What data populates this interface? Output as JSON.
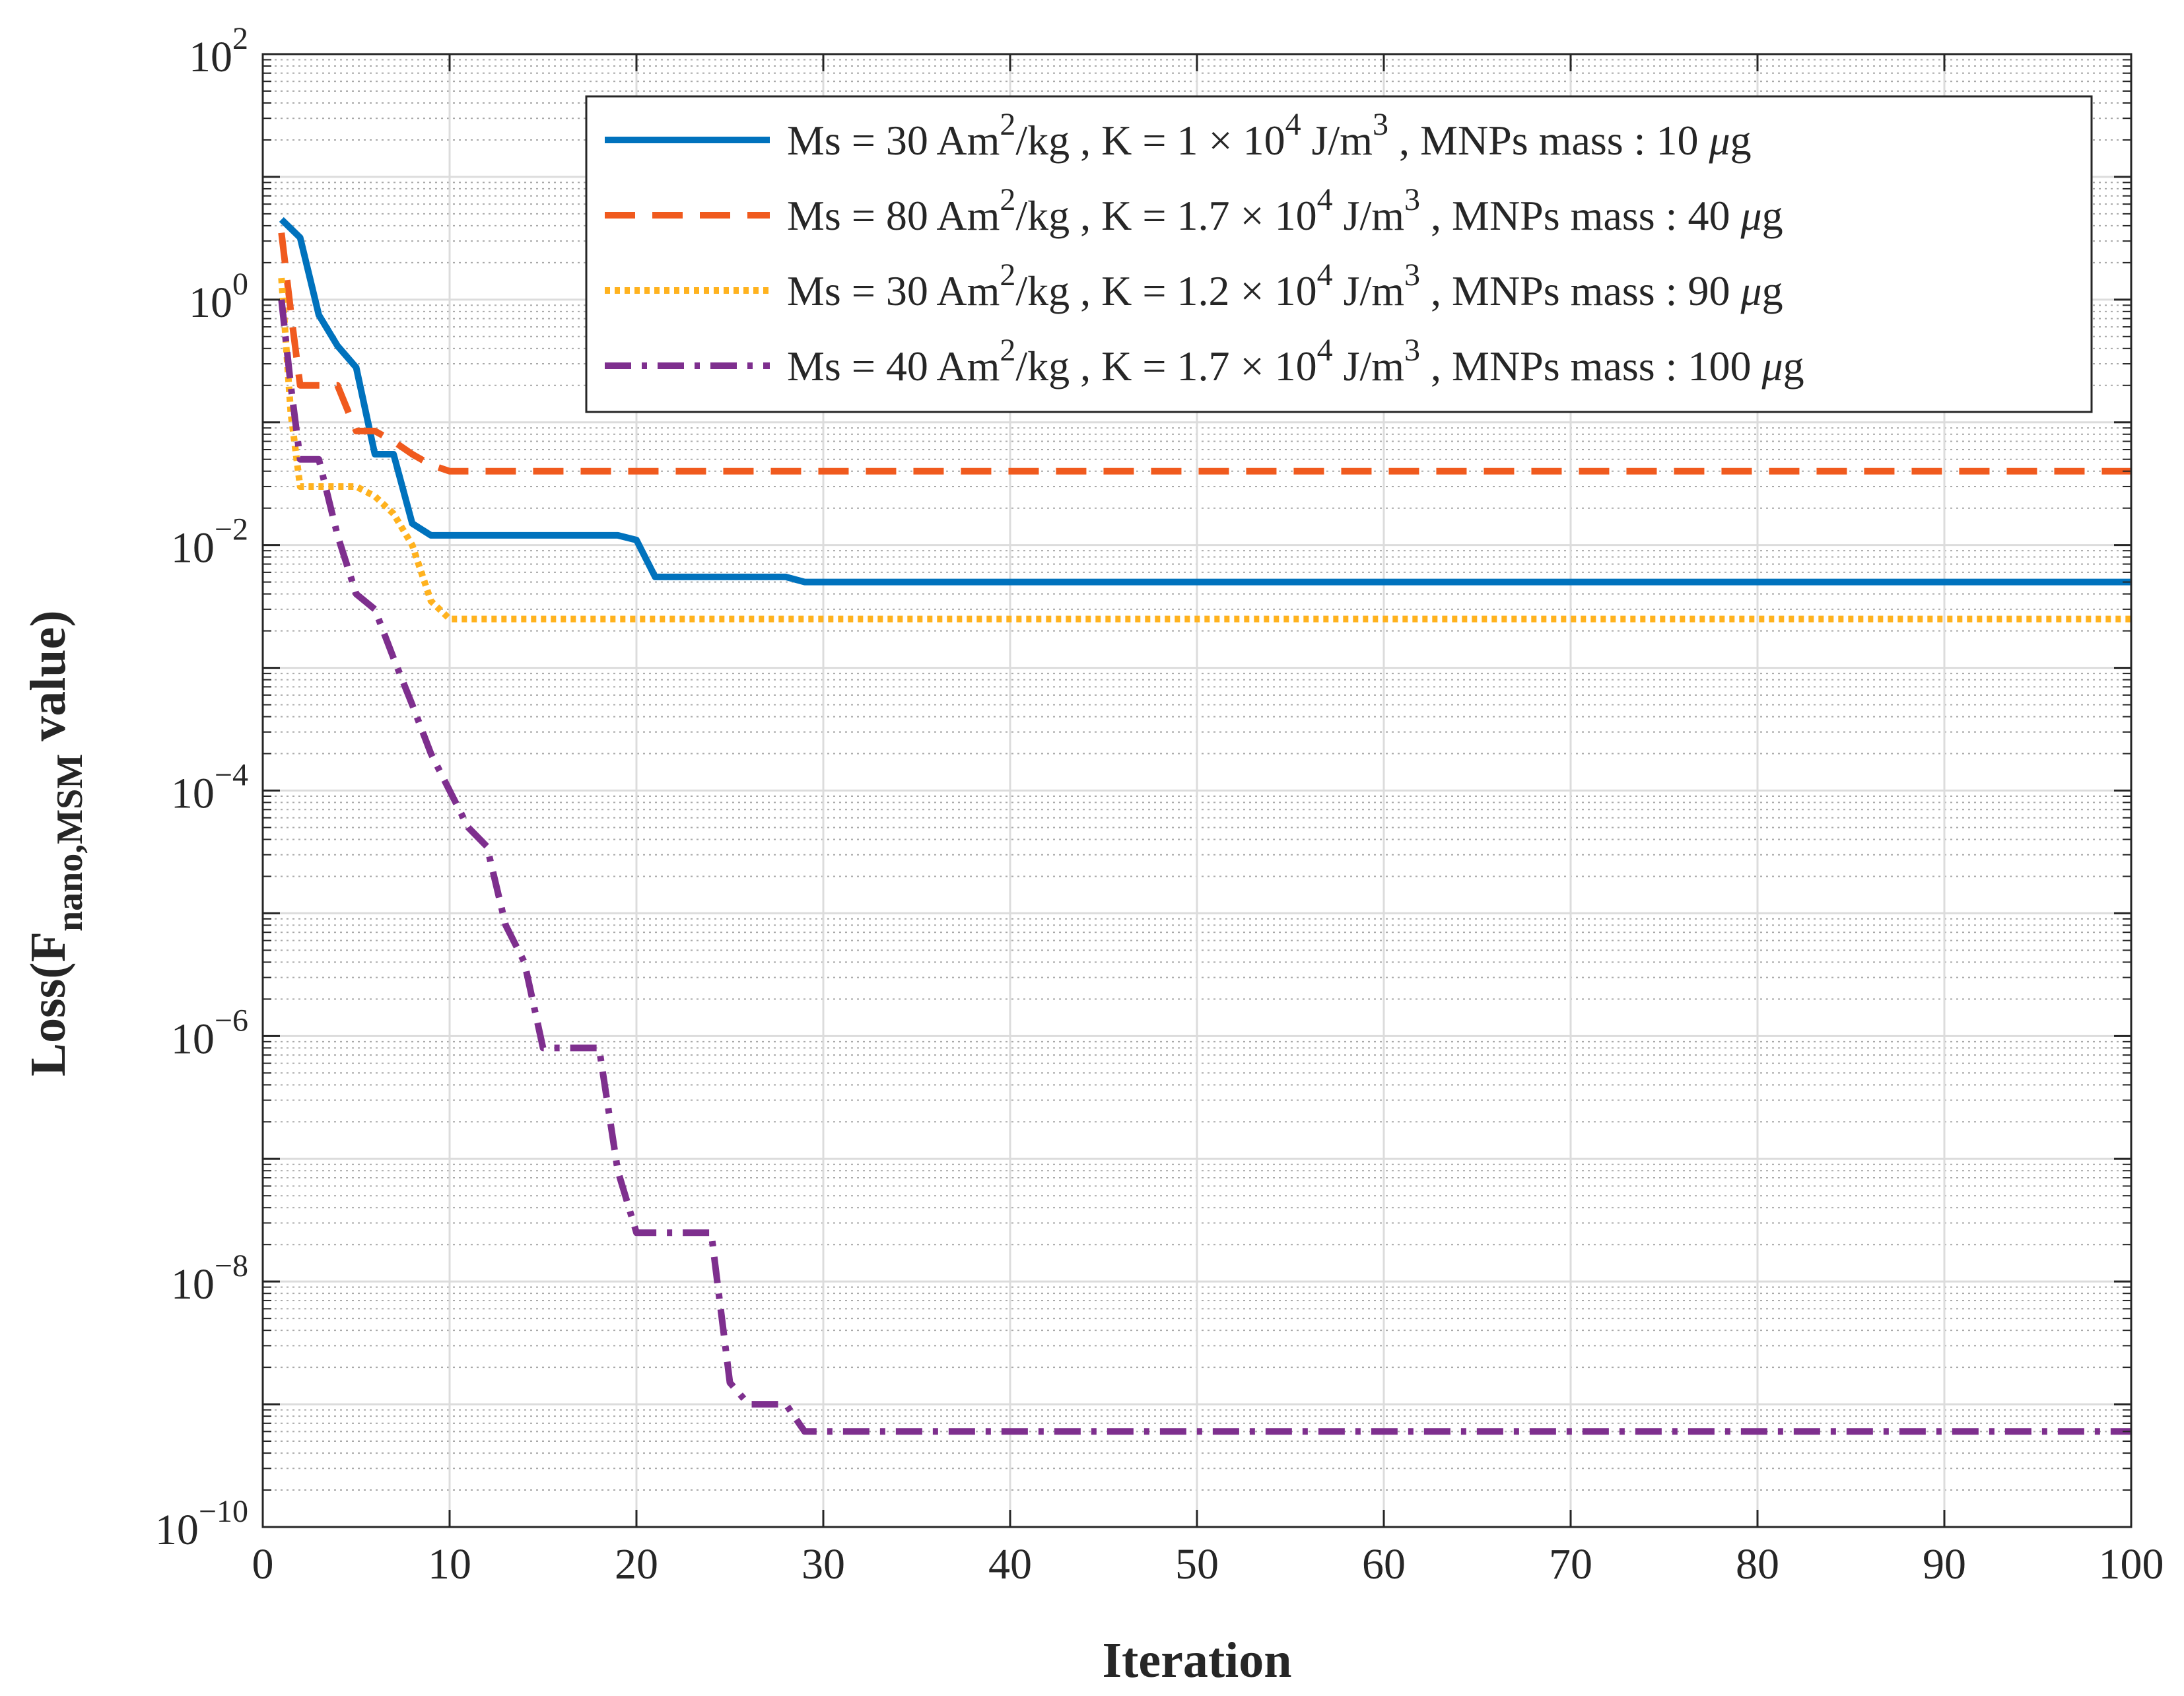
{
  "chart_data": {
    "type": "line",
    "title": "",
    "xlabel": "Iteration",
    "ylabel": {
      "prefix": "Loss(F",
      "subscript": "nano,MSM",
      "suffix": " value)"
    },
    "xlim": [
      0,
      100
    ],
    "ylim_exponent": [
      -10,
      2
    ],
    "y_scale": "log",
    "grid": "major and minor",
    "legend_position": "top-right",
    "x_ticks": [
      {
        "value": 0,
        "label": "0"
      },
      {
        "value": 10,
        "label": "10"
      },
      {
        "value": 20,
        "label": "20"
      },
      {
        "value": 30,
        "label": "30"
      },
      {
        "value": 40,
        "label": "40"
      },
      {
        "value": 50,
        "label": "50"
      },
      {
        "value": 60,
        "label": "60"
      },
      {
        "value": 70,
        "label": "70"
      },
      {
        "value": 80,
        "label": "80"
      },
      {
        "value": 90,
        "label": "90"
      },
      {
        "value": 100,
        "label": "100"
      }
    ],
    "y_ticks": [
      {
        "exp": 2,
        "base": "10",
        "sup": "2"
      },
      {
        "exp": 0,
        "base": "10",
        "sup": "0"
      },
      {
        "exp": -2,
        "base": "10",
        "sup": "−2"
      },
      {
        "exp": -4,
        "base": "10",
        "sup": "−4"
      },
      {
        "exp": -6,
        "base": "10",
        "sup": "−6"
      },
      {
        "exp": -8,
        "base": "10",
        "sup": "−8"
      },
      {
        "exp": -10,
        "base": "10",
        "sup": "−10"
      }
    ],
    "series": [
      {
        "name": "Ms = 30 Am2/kg , K = 1 × 104 J/m3 , MNPs mass : 10 μg",
        "legend_parts": [
          {
            "t": "Ms = 30 Am"
          },
          {
            "t": "2",
            "sup": true
          },
          {
            "t": "/kg , K = 1 × 10"
          },
          {
            "t": "4",
            "sup": true
          },
          {
            "t": " J/m"
          },
          {
            "t": "3",
            "sup": true
          },
          {
            "t": " , MNPs mass : 10 "
          },
          {
            "t": "μ",
            "italic": true
          },
          {
            "t": "g"
          }
        ],
        "color": "#0072BD",
        "dash": "",
        "points": [
          [
            1,
            4.5
          ],
          [
            2,
            3.2
          ],
          [
            3,
            0.75
          ],
          [
            4,
            0.42
          ],
          [
            5,
            0.28
          ],
          [
            6,
            0.055
          ],
          [
            7,
            0.055
          ],
          [
            8,
            0.015
          ],
          [
            9,
            0.012
          ],
          [
            19,
            0.012
          ],
          [
            20,
            0.011
          ],
          [
            21,
            0.0055
          ],
          [
            28,
            0.0055
          ],
          [
            29,
            0.005
          ],
          [
            100,
            0.005
          ]
        ]
      },
      {
        "name": "Ms = 80 Am2/kg , K = 1.7 × 104 J/m3 , MNPs mass : 40 μg",
        "legend_parts": [
          {
            "t": "Ms = 80 Am"
          },
          {
            "t": "2",
            "sup": true
          },
          {
            "t": "/kg , K = 1.7 × 10"
          },
          {
            "t": "4",
            "sup": true
          },
          {
            "t": " J/m"
          },
          {
            "t": "3",
            "sup": true
          },
          {
            "t": " , MNPs mass : 40 "
          },
          {
            "t": "μ",
            "italic": true
          },
          {
            "t": "g"
          }
        ],
        "color": "#F05A1E",
        "dash": "46 26",
        "points": [
          [
            1,
            3.5
          ],
          [
            1.6,
            0.6
          ],
          [
            2,
            0.2
          ],
          [
            4,
            0.2
          ],
          [
            5,
            0.085
          ],
          [
            6,
            0.085
          ],
          [
            7,
            0.07
          ],
          [
            8,
            0.055
          ],
          [
            9,
            0.045
          ],
          [
            10,
            0.04
          ],
          [
            100,
            0.04
          ]
        ]
      },
      {
        "name": "Ms = 30 Am2/kg , K = 1.2 × 104 J/m3 , MNPs mass : 90 μg",
        "legend_parts": [
          {
            "t": "Ms = 30 Am"
          },
          {
            "t": "2",
            "sup": true
          },
          {
            "t": "/kg , K = 1.2 × 10"
          },
          {
            "t": "4",
            "sup": true
          },
          {
            "t": " J/m"
          },
          {
            "t": "3",
            "sup": true
          },
          {
            "t": " , MNPs mass : 90 "
          },
          {
            "t": "μ",
            "italic": true
          },
          {
            "t": "g"
          }
        ],
        "color": "#FFB21E",
        "dash": "8 7",
        "points": [
          [
            1,
            1.5
          ],
          [
            1.5,
            0.12
          ],
          [
            2,
            0.03
          ],
          [
            5,
            0.03
          ],
          [
            6,
            0.025
          ],
          [
            7,
            0.018
          ],
          [
            8,
            0.01
          ],
          [
            9,
            0.0035
          ],
          [
            10,
            0.0025
          ],
          [
            100,
            0.0025
          ]
        ]
      },
      {
        "name": "Ms = 40 Am2/kg , K = 1.7 × 104 J/m3 , MNPs mass : 100 μg",
        "legend_parts": [
          {
            "t": "Ms = 40 Am"
          },
          {
            "t": "2",
            "sup": true
          },
          {
            "t": "/kg , K = 1.7 × 10"
          },
          {
            "t": "4",
            "sup": true
          },
          {
            "t": " J/m"
          },
          {
            "t": "3",
            "sup": true
          },
          {
            "t": " , MNPs mass : 100 "
          },
          {
            "t": "μ",
            "italic": true
          },
          {
            "t": "g"
          }
        ],
        "color": "#7E2F8E",
        "dash": "40 16 8 16",
        "points": [
          [
            1,
            1
          ],
          [
            1.5,
            0.2
          ],
          [
            2,
            0.05
          ],
          [
            3,
            0.05
          ],
          [
            4,
            0.012
          ],
          [
            5,
            0.004
          ],
          [
            6,
            0.003
          ],
          [
            7,
            0.0012
          ],
          [
            8,
            0.0005
          ],
          [
            9,
            0.0002
          ],
          [
            10,
            0.0001
          ],
          [
            11,
            5e-05
          ],
          [
            12,
            3.5e-05
          ],
          [
            13,
            8e-06
          ],
          [
            14,
            4e-06
          ],
          [
            15,
            8e-07
          ],
          [
            18,
            8e-07
          ],
          [
            19,
            8e-08
          ],
          [
            20,
            2.5e-08
          ],
          [
            24,
            2.5e-08
          ],
          [
            25,
            1.5e-09
          ],
          [
            26,
            1e-09
          ],
          [
            28,
            1e-09
          ],
          [
            29,
            6e-10
          ],
          [
            100,
            6e-10
          ]
        ]
      }
    ]
  }
}
